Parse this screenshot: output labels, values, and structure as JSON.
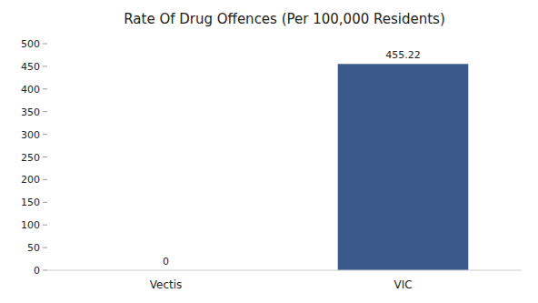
{
  "chart_data": {
    "type": "bar",
    "title": "Rate Of Drug Offences (Per 100,000 Residents)",
    "categories": [
      "Vectis",
      "VIC"
    ],
    "values": [
      0,
      455.22
    ],
    "colors": [
      "#3a5a8c",
      "#3a5a8c"
    ],
    "ylim": [
      0,
      500
    ],
    "yticks": [
      0,
      50,
      100,
      150,
      200,
      250,
      300,
      350,
      400,
      450,
      500
    ],
    "grid": false,
    "data_labels": true
  }
}
